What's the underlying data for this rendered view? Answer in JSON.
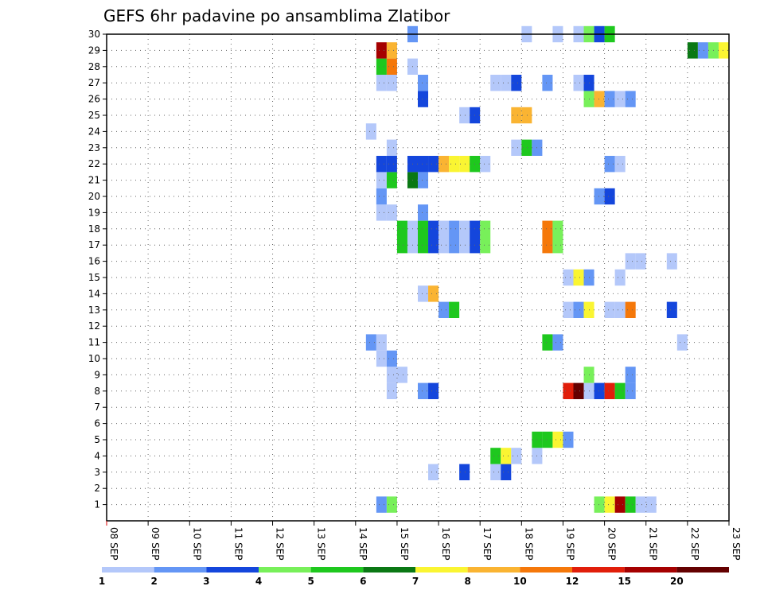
{
  "chart_data": {
    "type": "heatmap",
    "title": "GEFS 6hr padavine po ansamblima Zlatibor",
    "xlabel": "",
    "ylabel": "",
    "x_ticks": [
      "08 SEP",
      "09 SEP",
      "10 SEP",
      "11 SEP",
      "12 SEP",
      "13 SEP",
      "14 SEP",
      "15 SEP",
      "16 SEP",
      "17 SEP",
      "18 SEP",
      "19 SEP",
      "20 SEP",
      "21 SEP",
      "22 SEP",
      "23 SEP"
    ],
    "xlim": [
      0,
      15
    ],
    "y_ticks": [
      1,
      2,
      3,
      4,
      5,
      6,
      7,
      8,
      9,
      10,
      11,
      12,
      13,
      14,
      15,
      16,
      17,
      18,
      19,
      20,
      21,
      22,
      23,
      24,
      25,
      26,
      27,
      28,
      29,
      30
    ],
    "ylim": [
      0,
      30
    ],
    "grid": true,
    "legend_position": "bottom",
    "levels": [
      1,
      2,
      3,
      4,
      5,
      6,
      7,
      8,
      10,
      12,
      15,
      20
    ],
    "colors": [
      "#b4c8fa",
      "#6496f5",
      "#1446dc",
      "#78f05a",
      "#1ec81e",
      "#0a7814",
      "#faf532",
      "#fab432",
      "#f5780a",
      "#e11e0a",
      "#a50000",
      "#640000"
    ],
    "cells_note": "each cell: [member, step_start_days_from_08SEP, color_index]",
    "cells": [
      [
        1,
        6.5,
        1
      ],
      [
        1,
        6.75,
        3
      ],
      [
        1,
        11.75,
        3
      ],
      [
        1,
        12.0,
        6
      ],
      [
        1,
        12.25,
        10
      ],
      [
        1,
        12.5,
        4
      ],
      [
        1,
        12.75,
        0
      ],
      [
        1,
        13.0,
        0
      ],
      [
        2,
        0,
        -1
      ],
      [
        3,
        7.75,
        0
      ],
      [
        3,
        8.5,
        2
      ],
      [
        3,
        9.25,
        0
      ],
      [
        3,
        9.5,
        2
      ],
      [
        4,
        9.25,
        4
      ],
      [
        4,
        9.5,
        6
      ],
      [
        4,
        9.75,
        0
      ],
      [
        4,
        10.25,
        0
      ],
      [
        5,
        10.25,
        4
      ],
      [
        5,
        10.5,
        4
      ],
      [
        5,
        10.75,
        6
      ],
      [
        5,
        11.0,
        1
      ],
      [
        8,
        6.75,
        0
      ],
      [
        8,
        7.5,
        1
      ],
      [
        8,
        7.75,
        2
      ],
      [
        8,
        11.0,
        9
      ],
      [
        8,
        11.25,
        11
      ],
      [
        8,
        11.5,
        0
      ],
      [
        8,
        11.75,
        2
      ],
      [
        8,
        12.0,
        9
      ],
      [
        8,
        12.25,
        4
      ],
      [
        8,
        12.5,
        1
      ],
      [
        9,
        6.75,
        0
      ],
      [
        9,
        7.0,
        0
      ],
      [
        9,
        11.5,
        3
      ],
      [
        9,
        12.5,
        1
      ],
      [
        10,
        6.5,
        0
      ],
      [
        10,
        6.75,
        1
      ],
      [
        11,
        6.25,
        1
      ],
      [
        11,
        6.5,
        0
      ],
      [
        11,
        10.5,
        4
      ],
      [
        11,
        10.75,
        1
      ],
      [
        11,
        13.75,
        0
      ],
      [
        13,
        8.0,
        1
      ],
      [
        13,
        8.25,
        4
      ],
      [
        13,
        11.0,
        0
      ],
      [
        13,
        11.25,
        1
      ],
      [
        13,
        11.5,
        6
      ],
      [
        13,
        12.0,
        0
      ],
      [
        13,
        12.25,
        0
      ],
      [
        13,
        12.5,
        8
      ],
      [
        13,
        13.5,
        2
      ],
      [
        14,
        7.5,
        0
      ],
      [
        14,
        7.75,
        7
      ],
      [
        15,
        11.0,
        0
      ],
      [
        15,
        11.25,
        6
      ],
      [
        15,
        11.5,
        1
      ],
      [
        15,
        12.25,
        0
      ],
      [
        16,
        12.5,
        0
      ],
      [
        16,
        12.75,
        0
      ],
      [
        16,
        13.5,
        0
      ],
      [
        17,
        7.0,
        4
      ],
      [
        17,
        7.25,
        0
      ],
      [
        17,
        7.5,
        4
      ],
      [
        17,
        7.75,
        2
      ],
      [
        17,
        8.0,
        0
      ],
      [
        17,
        8.25,
        1
      ],
      [
        17,
        8.5,
        0
      ],
      [
        17,
        8.75,
        2
      ],
      [
        17,
        9.0,
        3
      ],
      [
        17,
        10.5,
        8
      ],
      [
        17,
        10.75,
        3
      ],
      [
        18,
        7.0,
        4
      ],
      [
        18,
        7.25,
        0
      ],
      [
        18,
        7.5,
        4
      ],
      [
        18,
        7.75,
        2
      ],
      [
        18,
        8.0,
        0
      ],
      [
        18,
        8.25,
        1
      ],
      [
        18,
        8.5,
        0
      ],
      [
        18,
        8.75,
        2
      ],
      [
        18,
        9.0,
        3
      ],
      [
        18,
        10.5,
        8
      ],
      [
        18,
        10.75,
        3
      ],
      [
        19,
        6.5,
        0
      ],
      [
        19,
        6.75,
        0
      ],
      [
        19,
        7.5,
        1
      ],
      [
        20,
        6.5,
        1
      ],
      [
        20,
        11.75,
        1
      ],
      [
        20,
        12.0,
        2
      ],
      [
        21,
        6.5,
        0
      ],
      [
        21,
        6.75,
        4
      ],
      [
        21,
        7.25,
        5
      ],
      [
        21,
        7.5,
        1
      ],
      [
        22,
        6.5,
        2
      ],
      [
        22,
        6.75,
        2
      ],
      [
        22,
        7.25,
        2
      ],
      [
        22,
        7.5,
        2
      ],
      [
        22,
        7.75,
        2
      ],
      [
        22,
        8.0,
        7
      ],
      [
        22,
        8.25,
        6
      ],
      [
        22,
        8.5,
        6
      ],
      [
        22,
        8.75,
        4
      ],
      [
        22,
        9.0,
        0
      ],
      [
        22,
        12.0,
        1
      ],
      [
        22,
        12.25,
        0
      ],
      [
        23,
        6.75,
        0
      ],
      [
        23,
        9.75,
        0
      ],
      [
        23,
        10.0,
        4
      ],
      [
        23,
        10.25,
        1
      ],
      [
        24,
        6.25,
        0
      ],
      [
        25,
        8.5,
        0
      ],
      [
        25,
        8.75,
        2
      ],
      [
        25,
        9.75,
        7
      ],
      [
        25,
        10.0,
        7
      ],
      [
        26,
        7.5,
        2
      ],
      [
        26,
        11.5,
        3
      ],
      [
        26,
        11.75,
        7
      ],
      [
        26,
        12.0,
        1
      ],
      [
        26,
        12.25,
        0
      ],
      [
        26,
        12.5,
        1
      ],
      [
        27,
        6.5,
        0
      ],
      [
        27,
        6.75,
        0
      ],
      [
        27,
        7.5,
        1
      ],
      [
        27,
        9.25,
        0
      ],
      [
        27,
        9.5,
        0
      ],
      [
        27,
        9.75,
        2
      ],
      [
        27,
        10.5,
        1
      ],
      [
        27,
        11.25,
        0
      ],
      [
        27,
        11.5,
        2
      ],
      [
        28,
        6.5,
        4
      ],
      [
        28,
        6.75,
        8
      ],
      [
        28,
        7.25,
        0
      ],
      [
        29,
        6.5,
        10
      ],
      [
        29,
        6.75,
        7
      ],
      [
        29,
        14.0,
        5
      ],
      [
        29,
        14.25,
        1
      ],
      [
        29,
        14.5,
        3
      ],
      [
        29,
        14.75,
        6
      ],
      [
        30,
        7.25,
        1
      ],
      [
        30,
        10.0,
        0
      ],
      [
        30,
        10.75,
        0
      ],
      [
        30,
        11.25,
        0
      ],
      [
        30,
        11.5,
        3
      ],
      [
        30,
        11.75,
        2
      ],
      [
        30,
        12.0,
        4
      ]
    ]
  }
}
